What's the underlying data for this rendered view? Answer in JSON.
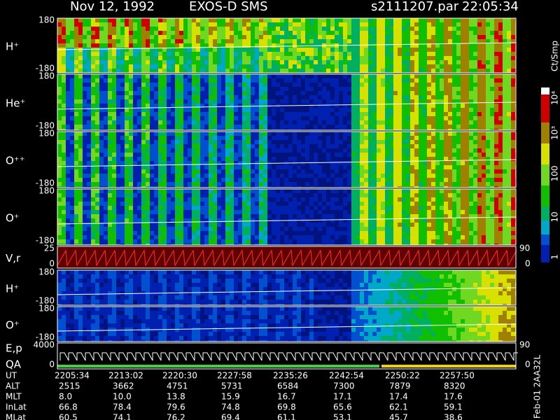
{
  "header": {
    "date": "Nov 12, 1992",
    "instrument": "EXOS-D SMS",
    "file": "s2111207.par",
    "time": "22:05:34"
  },
  "panels": [
    {
      "label": "H⁺",
      "top": "180",
      "bottom": "-180"
    },
    {
      "label": "He⁺",
      "top": "180",
      "bottom": "-180"
    },
    {
      "label": "O⁺⁺",
      "top": "180",
      "bottom": "-180"
    },
    {
      "label": "O⁺",
      "top": "180",
      "bottom": "-180"
    },
    {
      "label": "V,r",
      "top": "25",
      "bottom": "0",
      "right_top": "90",
      "right_bottom": "0"
    },
    {
      "label": "H⁺",
      "top": "180",
      "bottom": "-180"
    },
    {
      "label": "O⁺",
      "top": "180",
      "bottom": "-180"
    },
    {
      "label": "E,p",
      "label2": "QA",
      "top": "4000",
      "bottom": "0",
      "right_top": "90",
      "right_bottom": "0"
    }
  ],
  "colorbar": {
    "unit": "Ct/Smp",
    "labels": [
      "10⁴",
      "10³",
      "100",
      "10",
      "1"
    ]
  },
  "table": {
    "rows": [
      [
        "UT",
        "2205:34",
        "2213:02",
        "2220:30",
        "2227:58",
        "2235:26",
        "2242:54",
        "2250:22",
        "2257:50"
      ],
      [
        "ALT",
        "2515",
        "3662",
        "4751",
        "5731",
        "6584",
        "7300",
        "7879",
        "8320"
      ],
      [
        "MLT",
        "8.0",
        "10.0",
        "13.8",
        "15.9",
        "16.7",
        "17.1",
        "17.4",
        "17.6"
      ],
      [
        "InLat",
        "66.8",
        "78.4",
        "79.6",
        "74.8",
        "69.8",
        "65.6",
        "62.1",
        "59.1"
      ],
      [
        "MLat",
        "60.5",
        "74.1",
        "76.2",
        "69.4",
        "61.1",
        "53.1",
        "45.7",
        "38.6"
      ]
    ]
  },
  "footer": "Feb-01 2AA32L"
}
